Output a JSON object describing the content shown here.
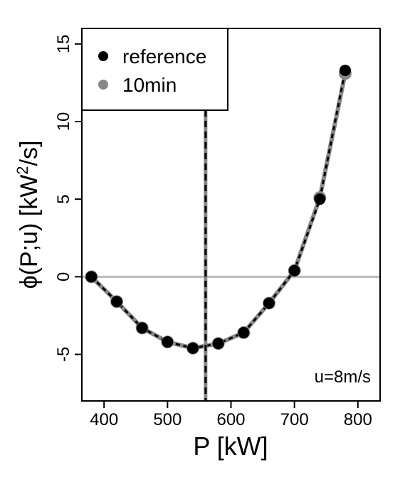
{
  "chart_data": {
    "type": "line",
    "xlabel": "P [kW]",
    "ylabel_main": "ϕ(P;u) [kW",
    "ylabel_sup": "2",
    "ylabel_tail": "/s]",
    "xlim": [
      365,
      835
    ],
    "ylim": [
      -8,
      16
    ],
    "x_ticks": [
      400,
      500,
      600,
      700,
      800
    ],
    "y_ticks": [
      -5,
      0,
      5,
      10,
      15
    ],
    "vline_x": 560,
    "hline_y": 0,
    "annotation": "u=8m/s",
    "legend_position": "top-left",
    "grid": false,
    "series": [
      {
        "name": "reference",
        "color": "#000000",
        "x": [
          380,
          420,
          460,
          500,
          540,
          580,
          620,
          660,
          700,
          740,
          780
        ],
        "y": [
          0.0,
          -1.6,
          -3.3,
          -4.2,
          -4.6,
          -4.3,
          -3.6,
          -1.7,
          0.4,
          5.0,
          13.3
        ]
      },
      {
        "name": "10min",
        "color": "#888888",
        "x": [
          380,
          420,
          460,
          500,
          540,
          580,
          620,
          660,
          700,
          740,
          780
        ],
        "y": [
          0.0,
          -1.6,
          -3.3,
          -4.2,
          -4.6,
          -4.3,
          -3.6,
          -1.7,
          0.4,
          5.1,
          13.1
        ]
      }
    ]
  }
}
